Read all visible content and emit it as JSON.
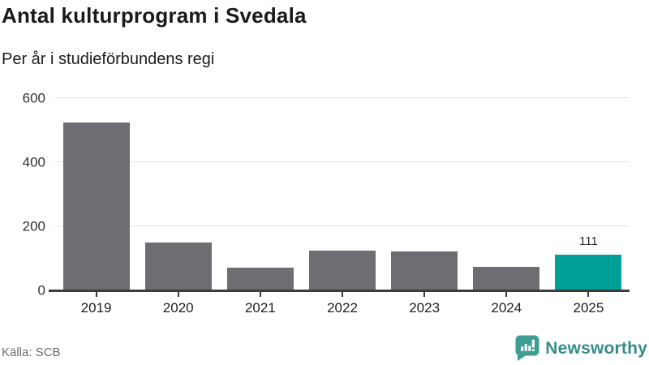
{
  "header": {
    "title": "Antal kulturprogram i Svedala",
    "subtitle": "Per år i studieförbundens regi"
  },
  "chart_data": {
    "type": "bar",
    "categories": [
      "2019",
      "2020",
      "2021",
      "2022",
      "2023",
      "2024",
      "2025"
    ],
    "values": [
      523,
      150,
      71,
      124,
      122,
      74,
      111
    ],
    "title": "Antal kulturprogram i Svedala",
    "subtitle": "Per år i studieförbundens regi",
    "xlabel": "",
    "ylabel": "",
    "ylim": [
      0,
      600
    ],
    "yticks": [
      0,
      200,
      400,
      600
    ],
    "grid": true,
    "legend": "none",
    "bar_color": "#6d6d72",
    "highlight_index": 6,
    "highlight_color": "#00a099",
    "value_labels": [
      {
        "index": 6,
        "text": "111"
      }
    ]
  },
  "footer": {
    "source": "Källa: SCB",
    "brand": {
      "name": "Newsworthy",
      "icon": "newsworthy-speech-bubble-chart-icon",
      "icon_color": "#3f9e93",
      "text_color": "#358d87"
    }
  }
}
